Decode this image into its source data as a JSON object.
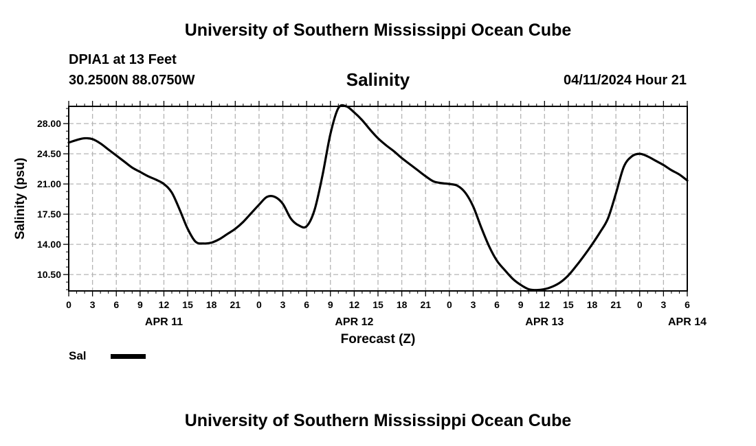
{
  "header": {
    "title": "University of Southern Mississippi Ocean Cube",
    "station": "DPIA1 at 13 Feet",
    "coordinates": "30.2500N  88.0750W",
    "datetime": "04/11/2024 Hour 21"
  },
  "footer": {
    "title": "University of Southern Mississippi Ocean Cube"
  },
  "legend": {
    "label": "Sal",
    "color": "#000000"
  },
  "chart_data": {
    "type": "line",
    "title": "Salinity",
    "xlabel": "Forecast (Z)",
    "ylabel": "Salinity (psu)",
    "grid": true,
    "xlim": [
      0,
      78
    ],
    "ylim": [
      8.6,
      30.0
    ],
    "y_ticks": [
      "10.50",
      "14.00",
      "17.50",
      "21.00",
      "24.50",
      "28.00"
    ],
    "x_ticks": [
      "0",
      "3",
      "6",
      "9",
      "12",
      "15",
      "18",
      "21",
      "0",
      "3",
      "6",
      "9",
      "12",
      "15",
      "18",
      "21",
      "0",
      "3",
      "6",
      "9",
      "12",
      "15",
      "18",
      "21",
      "0",
      "3",
      "6"
    ],
    "date_labels": [
      {
        "label": "APR 11",
        "hour": 12
      },
      {
        "label": "APR 12",
        "hour": 36
      },
      {
        "label": "APR 13",
        "hour": 60
      },
      {
        "label": "APR 14",
        "hour": 78
      }
    ],
    "series": [
      {
        "name": "Sal",
        "color": "#000000",
        "x": [
          0,
          1,
          2,
          3,
          4,
          5,
          6,
          7,
          8,
          9,
          10,
          11,
          12,
          13,
          14,
          15,
          16,
          17,
          18,
          19,
          20,
          21,
          22,
          23,
          24,
          25,
          26,
          27,
          28,
          29,
          30,
          31,
          32,
          33,
          34,
          35,
          36,
          37,
          38,
          39,
          40,
          41,
          42,
          43,
          44,
          45,
          46,
          47,
          48,
          49,
          50,
          51,
          52,
          53,
          54,
          55,
          56,
          57,
          58,
          59,
          60,
          61,
          62,
          63,
          64,
          65,
          66,
          67,
          68,
          69,
          70,
          71,
          72,
          73,
          74,
          75,
          76,
          77,
          78
        ],
        "values": [
          25.8,
          26.1,
          26.3,
          26.2,
          25.7,
          25.0,
          24.3,
          23.6,
          22.9,
          22.4,
          21.9,
          21.5,
          21.0,
          20.0,
          18.0,
          15.8,
          14.3,
          14.1,
          14.2,
          14.6,
          15.2,
          15.8,
          16.6,
          17.6,
          18.6,
          19.5,
          19.5,
          18.7,
          17.0,
          16.2,
          16.1,
          18.0,
          22.0,
          26.8,
          29.8,
          30.0,
          29.3,
          28.4,
          27.3,
          26.3,
          25.5,
          24.8,
          24.0,
          23.3,
          22.6,
          21.9,
          21.3,
          21.1,
          21.0,
          20.8,
          20.0,
          18.4,
          16.0,
          13.8,
          12.1,
          11.0,
          10.0,
          9.3,
          8.8,
          8.7,
          8.8,
          9.1,
          9.6,
          10.4,
          11.5,
          12.7,
          14.0,
          15.4,
          17.0,
          19.9,
          23.0,
          24.2,
          24.5,
          24.2,
          23.7,
          23.2,
          22.6,
          22.1,
          21.4
        ]
      }
    ]
  }
}
